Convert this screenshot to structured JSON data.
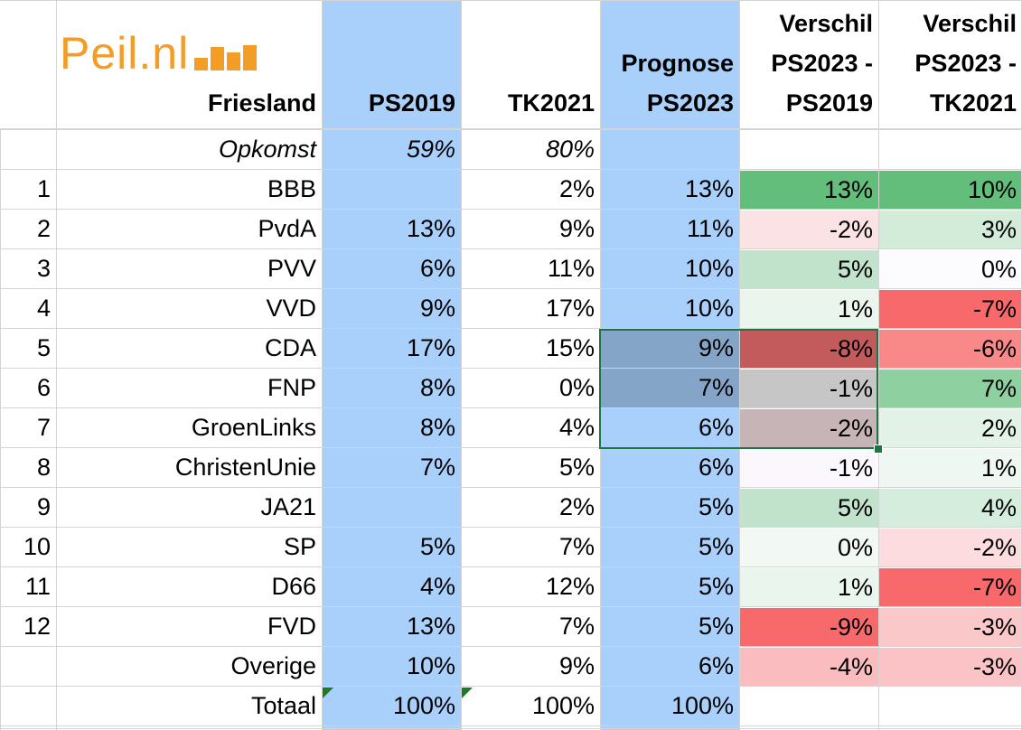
{
  "logo": {
    "text": "Peil.nl",
    "icon": "bar-chart-icon",
    "color": "#f39c26"
  },
  "headers": {
    "region": "Friesland",
    "ps2019": [
      "PS2019"
    ],
    "tk2021": [
      "TK2021"
    ],
    "prognose": [
      "Prognose",
      "PS2023"
    ],
    "verschil_ps2019": [
      "Verschil",
      "PS2023 -",
      "PS2019"
    ],
    "verschil_tk2021": [
      "Verschil",
      "PS2023 -",
      "TK2021"
    ]
  },
  "opkomst": {
    "label": "Opkomst",
    "ps2019": "59%",
    "tk2021": "80%"
  },
  "parties": [
    {
      "rank": "1",
      "name": "BBB",
      "ps2019": "",
      "tk2021": "2%",
      "prognose": "13%",
      "v2019": "13%",
      "v2021": "10%",
      "c2019": "#63be7b",
      "c2021": "#63be7b"
    },
    {
      "rank": "2",
      "name": "PvdA",
      "ps2019": "13%",
      "tk2021": "9%",
      "prognose": "11%",
      "v2019": "-2%",
      "v2021": "3%",
      "c2019": "#fbe2e5",
      "c2021": "#d3ecda"
    },
    {
      "rank": "3",
      "name": "PVV",
      "ps2019": "6%",
      "tk2021": "11%",
      "prognose": "10%",
      "v2019": "5%",
      "v2021": "0%",
      "c2019": "#c1e3cb",
      "c2021": "#fcfcff"
    },
    {
      "rank": "4",
      "name": "VVD",
      "ps2019": "9%",
      "tk2021": "17%",
      "prognose": "10%",
      "v2019": "1%",
      "v2021": "-7%",
      "c2019": "#eaf5ed",
      "c2021": "#f8696b"
    },
    {
      "rank": "5",
      "name": "CDA",
      "ps2019": "17%",
      "tk2021": "15%",
      "prognose": "9%",
      "v2019": "-8%",
      "v2021": "-6%",
      "c2019": "#c35a5b",
      "c2021": "#f98889"
    },
    {
      "rank": "6",
      "name": "FNP",
      "ps2019": "8%",
      "tk2021": "0%",
      "prognose": "7%",
      "v2019": "-1%",
      "v2021": "7%",
      "c2019": "#c6c6c6",
      "c2021": "#8ed09f"
    },
    {
      "rank": "7",
      "name": "GroenLinks",
      "ps2019": "8%",
      "tk2021": "4%",
      "prognose": "6%",
      "v2019": "-2%",
      "v2021": "2%",
      "c2019": "#c6b4b6",
      "c2021": "#e2f2e7"
    },
    {
      "rank": "8",
      "name": "ChristenUnie",
      "ps2019": "7%",
      "tk2021": "5%",
      "prognose": "6%",
      "v2019": "-1%",
      "v2021": "1%",
      "c2019": "#faf8fc",
      "c2021": "#eef7f1"
    },
    {
      "rank": "9",
      "name": "JA21",
      "ps2019": "",
      "tk2021": "2%",
      "prognose": "5%",
      "v2019": "5%",
      "v2021": "4%",
      "c2019": "#c1e3cb",
      "c2021": "#d5eddc"
    },
    {
      "rank": "10",
      "name": "SP",
      "ps2019": "5%",
      "tk2021": "7%",
      "prognose": "5%",
      "v2019": "0%",
      "v2021": "-2%",
      "c2019": "#f2f8f4",
      "c2021": "#fcdcde"
    },
    {
      "rank": "11",
      "name": "D66",
      "ps2019": "4%",
      "tk2021": "12%",
      "prognose": "5%",
      "v2019": "1%",
      "v2021": "-7%",
      "c2019": "#eaf5ed",
      "c2021": "#f8696b"
    },
    {
      "rank": "12",
      "name": "FVD",
      "ps2019": "13%",
      "tk2021": "7%",
      "prognose": "5%",
      "v2019": "-9%",
      "v2021": "-3%",
      "c2019": "#f8696b",
      "c2021": "#fbc8ca"
    },
    {
      "rank": "",
      "name": "Overige",
      "ps2019": "10%",
      "tk2021": "9%",
      "prognose": "6%",
      "v2019": "-4%",
      "v2021": "-3%",
      "c2019": "#fabcbe",
      "c2021": "#fbc3c5"
    }
  ],
  "totaal": {
    "label": "Totaal",
    "ps2019": "100%",
    "tk2021": "100%",
    "prognose": "100%"
  },
  "colors": {
    "column_highlight": "#a9d0fb",
    "selected_fill": "#85a5c8",
    "selection_border": "#217346",
    "gridline": "#d4d4d4"
  }
}
